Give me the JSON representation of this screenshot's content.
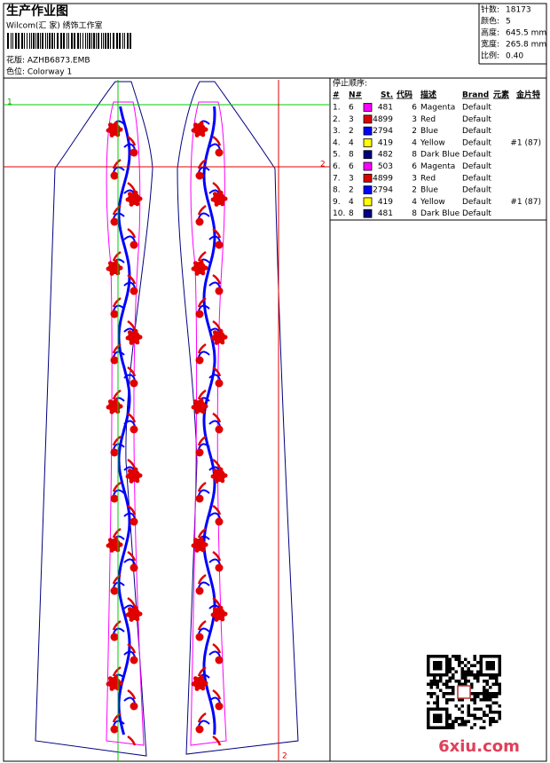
{
  "header": {
    "title": "生产作业图",
    "subtitle": "Wilcom(汇 家) 绣饰工作室",
    "design": "花版: AZHB6873.EMB",
    "colorway": "色位: Colorway 1"
  },
  "info": [
    {
      "label": "针数:",
      "value": "18173"
    },
    {
      "label": "颜色:",
      "value": "5"
    },
    {
      "label": "高度:",
      "value": "645.5 mm"
    },
    {
      "label": "宽度:",
      "value": "265.8 mm"
    },
    {
      "label": "比例:",
      "value": "0.40"
    }
  ],
  "guides": {
    "h1": "1",
    "h2": "2",
    "v2": "2"
  },
  "table": {
    "title": "停止顺序:",
    "columns": [
      "#",
      "N#",
      "St.",
      "代码",
      "描述",
      "Brand",
      "元素",
      "金片特"
    ],
    "rows": [
      {
        "num": "1.",
        "n": "6",
        "color": "#ff00ff",
        "st": "481",
        "code": "6",
        "desc": "Magenta",
        "brand": "Default",
        "seq": ""
      },
      {
        "num": "2.",
        "n": "3",
        "color": "#e00000",
        "st": "4899",
        "code": "3",
        "desc": "Red",
        "brand": "Default",
        "seq": ""
      },
      {
        "num": "3.",
        "n": "2",
        "color": "#0000ff",
        "st": "2794",
        "code": "2",
        "desc": "Blue",
        "brand": "Default",
        "seq": ""
      },
      {
        "num": "4.",
        "n": "4",
        "color": "#ffff00",
        "st": "419",
        "code": "4",
        "desc": "Yellow",
        "brand": "Default",
        "seq": "#1 (87)"
      },
      {
        "num": "5.",
        "n": "8",
        "color": "#000080",
        "st": "482",
        "code": "8",
        "desc": "Dark Blue",
        "brand": "Default",
        "seq": ""
      },
      {
        "num": "6.",
        "n": "6",
        "color": "#ff00ff",
        "st": "503",
        "code": "6",
        "desc": "Magenta",
        "brand": "Default",
        "seq": ""
      },
      {
        "num": "7.",
        "n": "3",
        "color": "#e00000",
        "st": "4899",
        "code": "3",
        "desc": "Red",
        "brand": "Default",
        "seq": ""
      },
      {
        "num": "8.",
        "n": "2",
        "color": "#0000ff",
        "st": "2794",
        "code": "2",
        "desc": "Blue",
        "brand": "Default",
        "seq": ""
      },
      {
        "num": "9.",
        "n": "4",
        "color": "#ffff00",
        "st": "419",
        "code": "4",
        "desc": "Yellow",
        "brand": "Default",
        "seq": "#1 (87)"
      },
      {
        "num": "10.",
        "n": "8",
        "color": "#000080",
        "st": "481",
        "code": "8",
        "desc": "Dark Blue",
        "brand": "Default",
        "seq": ""
      }
    ]
  },
  "watermark": "6xiu.com"
}
